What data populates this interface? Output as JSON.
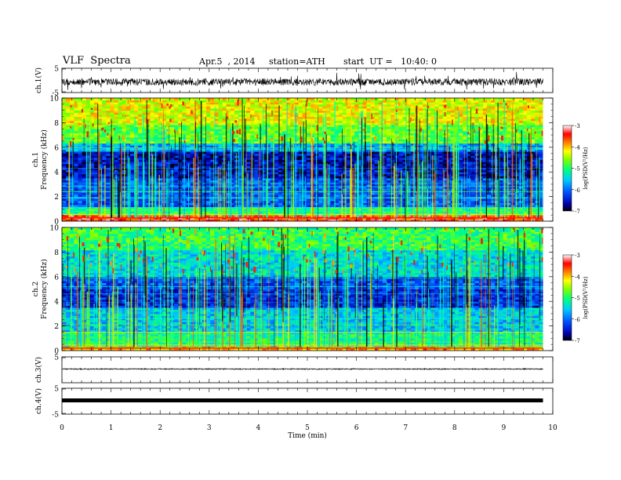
{
  "header": {
    "title": "VLF  Spectra",
    "date": "Apr.5  , 2014",
    "station": "station=ATH",
    "start": "start  UT =   10:40: 0"
  },
  "chart_data": [
    {
      "type": "line",
      "panel": "ch1-waveform",
      "ylabel": "ch.1(V)",
      "ylim": [
        -5,
        5
      ],
      "yticks": [
        "5",
        "-5"
      ],
      "xlim": [
        0,
        10
      ],
      "x_end": 9.8,
      "color": "#000000"
    },
    {
      "type": "heatmap",
      "panel": "ch1-spectrogram",
      "ylabel_top": "ch.1",
      "ylabel": "Frequency  (kHz)",
      "ylim": [
        0,
        10
      ],
      "yticks": [
        "0",
        "2",
        "4",
        "6",
        "8",
        "10"
      ],
      "xlim": [
        0,
        10
      ],
      "x_end": 9.8,
      "colorbar": {
        "label": "log(PSD(V²/Hz)",
        "range": [
          -7,
          -3
        ],
        "ticks": [
          "-3",
          "-4",
          "-5",
          "-6",
          "-7"
        ]
      }
    },
    {
      "type": "heatmap",
      "panel": "ch2-spectrogram",
      "ylabel_top": "ch.2",
      "ylabel": "Frequency  (kHz)",
      "ylim": [
        0,
        10
      ],
      "yticks": [
        "0",
        "2",
        "4",
        "6",
        "8",
        "10"
      ],
      "xlim": [
        0,
        10
      ],
      "x_end": 9.8,
      "colorbar": {
        "label": "log(PSD(V²/Hz)",
        "range": [
          -7,
          -3
        ],
        "ticks": [
          "-3",
          "-4",
          "-5",
          "-6",
          "-7"
        ]
      }
    },
    {
      "type": "line",
      "panel": "ch3-waveform",
      "ylabel": "ch.3(V)",
      "ylim": [
        -5,
        5
      ],
      "yticks": [
        "5"
      ],
      "xlim": [
        0,
        10
      ],
      "x_end": 9.8,
      "level": 0
    },
    {
      "type": "line",
      "panel": "ch4-waveform",
      "ylabel": "ch.4(V)",
      "ylim": [
        -5,
        5
      ],
      "yticks": [
        "5",
        "-5"
      ],
      "xlim": [
        0,
        10
      ],
      "x_end": 9.8,
      "level": 0
    }
  ],
  "xaxis": {
    "label": "Time  (min)",
    "ticks": [
      "0",
      "1",
      "2",
      "3",
      "4",
      "5",
      "6",
      "7",
      "8",
      "9",
      "10"
    ]
  }
}
